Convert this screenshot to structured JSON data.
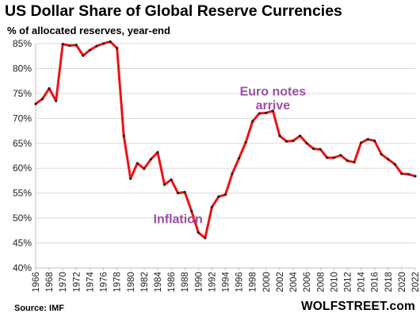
{
  "chart_data": {
    "type": "line",
    "title": "US Dollar Share of Global Reserve Currencies",
    "subtitle": "% of allocated reserves, year-end",
    "xlabel": "",
    "ylabel": "",
    "ylim": [
      40,
      85
    ],
    "xlim": [
      1966,
      2022
    ],
    "yticks": [
      "40%",
      "45%",
      "50%",
      "55%",
      "60%",
      "65%",
      "70%",
      "75%",
      "80%",
      "85%"
    ],
    "ytick_values": [
      40,
      45,
      50,
      55,
      60,
      65,
      70,
      75,
      80,
      85
    ],
    "xticks": [
      "1966",
      "1968",
      "1970",
      "1972",
      "1974",
      "1976",
      "1978",
      "1980",
      "1982",
      "1984",
      "1986",
      "1988",
      "1990",
      "1992",
      "1994",
      "1996",
      "1998",
      "2000",
      "2002",
      "2004",
      "2006",
      "2008",
      "2010",
      "2012",
      "2014",
      "2016",
      "2018",
      "2020",
      "2022"
    ],
    "grid": "horizontal",
    "line_color": "#ee1111",
    "marker_color": "#222222",
    "annotation_color": "#9e4fa6",
    "series": [
      {
        "x": [
          1966,
          1967,
          1968,
          1969,
          1970,
          1971,
          1972,
          1973,
          1974,
          1975,
          1976,
          1977,
          1978,
          1979,
          1980,
          1981,
          1982,
          1983,
          1984,
          1985,
          1986,
          1987,
          1988,
          1989,
          1990,
          1991,
          1992,
          1993,
          1994,
          1995,
          1996,
          1997,
          1998,
          1999,
          2000,
          2001,
          2002,
          2003,
          2004,
          2005,
          2006,
          2007,
          2008,
          2009,
          2010,
          2011,
          2012,
          2013,
          2014,
          2015,
          2016,
          2017,
          2018,
          2019,
          2020,
          2021,
          2022
        ],
        "values": [
          72.9,
          73.9,
          76.0,
          73.5,
          84.9,
          84.6,
          84.7,
          82.6,
          83.7,
          84.5,
          85.0,
          85.4,
          84.1,
          66.5,
          57.9,
          61.0,
          59.9,
          61.8,
          63.2,
          56.7,
          57.7,
          55.0,
          55.2,
          51.4,
          47.1,
          46.0,
          52.2,
          54.3,
          54.7,
          58.9,
          62.0,
          65.2,
          69.4,
          71.0,
          71.1,
          71.5,
          66.5,
          65.4,
          65.5,
          66.5,
          65.0,
          63.9,
          63.8,
          62.1,
          62.1,
          62.6,
          61.5,
          61.2,
          65.1,
          65.8,
          65.5,
          62.8,
          61.8,
          60.8,
          58.9,
          58.8,
          58.4
        ]
      }
    ],
    "annotations": [
      {
        "text": "Euro notes",
        "x": 2001,
        "y": 74.6
      },
      {
        "text": "arrive",
        "x": 2001,
        "y": 71.8
      },
      {
        "text": "Inflation",
        "x": 1987,
        "y": 49.0
      }
    ]
  },
  "footer": {
    "source": "Source: IMF",
    "brand": "WOLFSTREET.com"
  }
}
